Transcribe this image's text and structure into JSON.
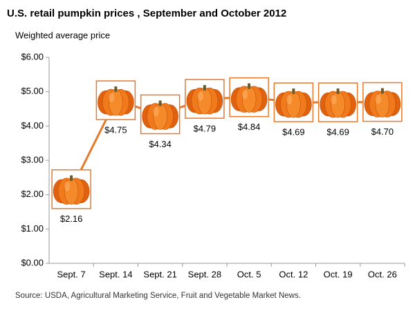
{
  "chart_data": {
    "type": "line",
    "title": "U.S. retail pumpkin prices , September and October 2012",
    "y_label": "Weighted average price",
    "source": "Source:  USDA, Agricultural Marketing Service, Fruit and Vegetable Market News.",
    "categories": [
      "Sept. 7",
      "Sept. 14",
      "Sept. 21",
      "Sept. 28",
      "Oct. 5",
      "Oct. 12",
      "Oct. 19",
      "Oct. 26"
    ],
    "values": [
      2.16,
      4.75,
      4.34,
      4.79,
      4.84,
      4.69,
      4.69,
      4.7
    ],
    "value_labels": [
      "$2.16",
      "$4.75",
      "$4.34",
      "$4.79",
      "$4.84",
      "$4.69",
      "$4.69",
      "$4.70"
    ],
    "color": "#e8782a",
    "ylim": [
      0,
      6
    ],
    "yticks": [
      {
        "value": 0,
        "label": "$0.00"
      },
      {
        "value": 1,
        "label": "$1.00"
      },
      {
        "value": 2,
        "label": "$2.00"
      },
      {
        "value": 3,
        "label": "$3.00"
      },
      {
        "value": 4,
        "label": "$4.00"
      },
      {
        "value": 5,
        "label": "$5.00"
      },
      {
        "value": 6,
        "label": "$6.00"
      }
    ],
    "grid": false
  }
}
